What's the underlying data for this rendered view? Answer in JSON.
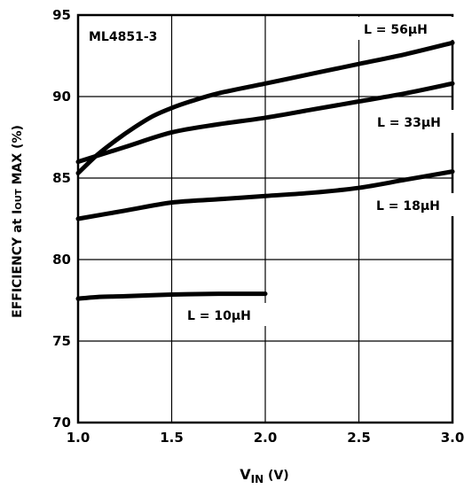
{
  "chart_data": {
    "type": "line",
    "model_label": "ML4851-3",
    "xlabel_main": "V",
    "xlabel_sub": "IN",
    "xlabel_unit": " (V)",
    "ylabel_pre": "EFFICIENCY at I",
    "ylabel_sub": "OUT",
    "ylabel_post": " MAX (%)",
    "xlim": [
      1.0,
      3.0
    ],
    "ylim": [
      70,
      95
    ],
    "x_ticks": [
      "1.0",
      "1.5",
      "2.0",
      "2.5",
      "3.0"
    ],
    "y_ticks": [
      "70",
      "75",
      "80",
      "85",
      "90",
      "95"
    ],
    "grid": true,
    "series": [
      {
        "name": "L = 56µH",
        "x": [
          1.0,
          1.1,
          1.2,
          1.3,
          1.4,
          1.5,
          1.6,
          1.75,
          2.0,
          2.25,
          2.5,
          2.75,
          3.0
        ],
        "y": [
          85.3,
          86.4,
          87.3,
          88.1,
          88.8,
          89.3,
          89.7,
          90.2,
          90.8,
          91.4,
          92.0,
          92.6,
          93.3
        ]
      },
      {
        "name": "L = 33µH",
        "x": [
          1.0,
          1.25,
          1.5,
          1.75,
          2.0,
          2.25,
          2.5,
          2.75,
          3.0
        ],
        "y": [
          86.0,
          86.9,
          87.8,
          88.3,
          88.7,
          89.2,
          89.7,
          90.2,
          90.8
        ]
      },
      {
        "name": "L = 18µH",
        "x": [
          1.0,
          1.25,
          1.5,
          1.75,
          2.0,
          2.25,
          2.5,
          2.75,
          3.0
        ],
        "y": [
          82.5,
          83.0,
          83.5,
          83.7,
          83.9,
          84.1,
          84.4,
          84.9,
          85.4
        ]
      },
      {
        "name": "L = 10µH",
        "x": [
          1.0,
          1.1,
          1.25,
          1.5,
          1.75,
          2.0
        ],
        "y": [
          77.6,
          77.7,
          77.75,
          77.85,
          77.9,
          77.9
        ]
      }
    ]
  }
}
